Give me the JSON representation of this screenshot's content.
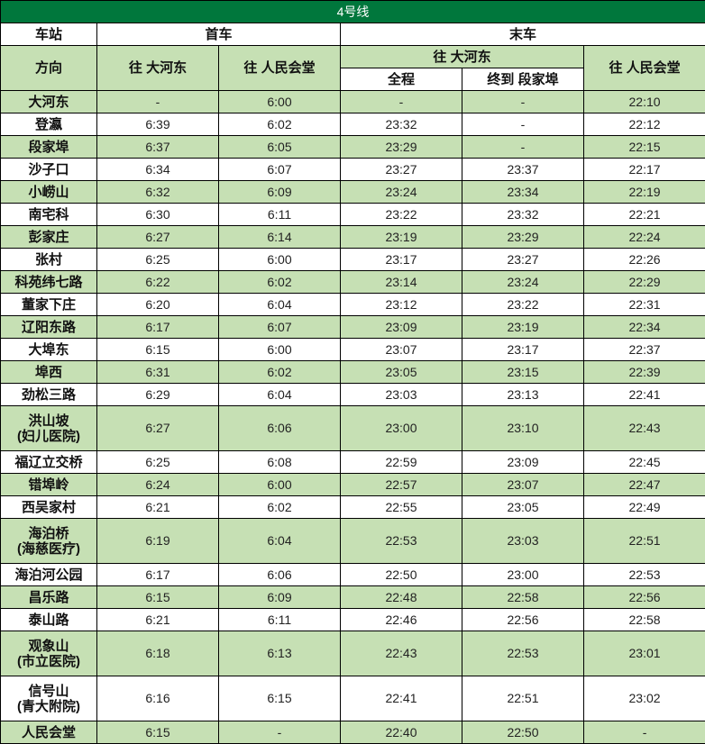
{
  "title": "4号线",
  "header": {
    "station": "车站",
    "first_train": "首车",
    "last_train": "末车",
    "direction": "方向",
    "to_dahedong": "往 大河东",
    "to_renminhuitang": "往 人民会堂",
    "full_route": "全程",
    "terminate_duanjiabu": "终到 段家埠"
  },
  "colors": {
    "title_bg": "#00773c",
    "row_green": "#c6e0b4",
    "row_white": "#ffffff"
  },
  "rows": [
    {
      "station": [
        "大河东"
      ],
      "first_dhd": "-",
      "first_rmht": "6:00",
      "last_full": "-",
      "last_djb": "-",
      "last_rmht": "22:10"
    },
    {
      "station": [
        "登瀛"
      ],
      "first_dhd": "6:39",
      "first_rmht": "6:02",
      "last_full": "23:32",
      "last_djb": "-",
      "last_rmht": "22:12"
    },
    {
      "station": [
        "段家埠"
      ],
      "first_dhd": "6:37",
      "first_rmht": "6:05",
      "last_full": "23:29",
      "last_djb": "-",
      "last_rmht": "22:15"
    },
    {
      "station": [
        "沙子口"
      ],
      "first_dhd": "6:34",
      "first_rmht": "6:07",
      "last_full": "23:27",
      "last_djb": "23:37",
      "last_rmht": "22:17"
    },
    {
      "station": [
        "小崂山"
      ],
      "first_dhd": "6:32",
      "first_rmht": "6:09",
      "last_full": "23:24",
      "last_djb": "23:34",
      "last_rmht": "22:19"
    },
    {
      "station": [
        "南宅科"
      ],
      "first_dhd": "6:30",
      "first_rmht": "6:11",
      "last_full": "23:22",
      "last_djb": "23:32",
      "last_rmht": "22:21"
    },
    {
      "station": [
        "彭家庄"
      ],
      "first_dhd": "6:27",
      "first_rmht": "6:14",
      "last_full": "23:19",
      "last_djb": "23:29",
      "last_rmht": "22:24"
    },
    {
      "station": [
        "张村"
      ],
      "first_dhd": "6:25",
      "first_rmht": "6:00",
      "last_full": "23:17",
      "last_djb": "23:27",
      "last_rmht": "22:26"
    },
    {
      "station": [
        "科苑纬七路"
      ],
      "first_dhd": "6:22",
      "first_rmht": "6:02",
      "last_full": "23:14",
      "last_djb": "23:24",
      "last_rmht": "22:29"
    },
    {
      "station": [
        "董家下庄"
      ],
      "first_dhd": "6:20",
      "first_rmht": "6:04",
      "last_full": "23:12",
      "last_djb": "23:22",
      "last_rmht": "22:31"
    },
    {
      "station": [
        "辽阳东路"
      ],
      "first_dhd": "6:17",
      "first_rmht": "6:07",
      "last_full": "23:09",
      "last_djb": "23:19",
      "last_rmht": "22:34"
    },
    {
      "station": [
        "大埠东"
      ],
      "first_dhd": "6:15",
      "first_rmht": "6:00",
      "last_full": "23:07",
      "last_djb": "23:17",
      "last_rmht": "22:37"
    },
    {
      "station": [
        "埠西"
      ],
      "first_dhd": "6:31",
      "first_rmht": "6:02",
      "last_full": "23:05",
      "last_djb": "23:15",
      "last_rmht": "22:39"
    },
    {
      "station": [
        "劲松三路"
      ],
      "first_dhd": "6:29",
      "first_rmht": "6:04",
      "last_full": "23:03",
      "last_djb": "23:13",
      "last_rmht": "22:41"
    },
    {
      "station": [
        "洪山坡",
        "(妇儿医院)"
      ],
      "first_dhd": "6:27",
      "first_rmht": "6:06",
      "last_full": "23:00",
      "last_djb": "23:10",
      "last_rmht": "22:43"
    },
    {
      "station": [
        "福辽立交桥"
      ],
      "first_dhd": "6:25",
      "first_rmht": "6:08",
      "last_full": "22:59",
      "last_djb": "23:09",
      "last_rmht": "22:45"
    },
    {
      "station": [
        "错埠岭"
      ],
      "first_dhd": "6:24",
      "first_rmht": "6:00",
      "last_full": "22:57",
      "last_djb": "23:07",
      "last_rmht": "22:47"
    },
    {
      "station": [
        "西吴家村"
      ],
      "first_dhd": "6:21",
      "first_rmht": "6:02",
      "last_full": "22:55",
      "last_djb": "23:05",
      "last_rmht": "22:49"
    },
    {
      "station": [
        "海泊桥",
        "(海慈医疗)"
      ],
      "first_dhd": "6:19",
      "first_rmht": "6:04",
      "last_full": "22:53",
      "last_djb": "23:03",
      "last_rmht": "22:51"
    },
    {
      "station": [
        "海泊河公园"
      ],
      "first_dhd": "6:17",
      "first_rmht": "6:06",
      "last_full": "22:50",
      "last_djb": "23:00",
      "last_rmht": "22:53"
    },
    {
      "station": [
        "昌乐路"
      ],
      "first_dhd": "6:15",
      "first_rmht": "6:09",
      "last_full": "22:48",
      "last_djb": "22:58",
      "last_rmht": "22:56"
    },
    {
      "station": [
        "泰山路"
      ],
      "first_dhd": "6:21",
      "first_rmht": "6:11",
      "last_full": "22:46",
      "last_djb": "22:56",
      "last_rmht": "22:58"
    },
    {
      "station": [
        "观象山",
        "(市立医院)"
      ],
      "first_dhd": "6:18",
      "first_rmht": "6:13",
      "last_full": "22:43",
      "last_djb": "22:53",
      "last_rmht": "23:01"
    },
    {
      "station": [
        "信号山",
        "(青大附院)"
      ],
      "first_dhd": "6:16",
      "first_rmht": "6:15",
      "last_full": "22:41",
      "last_djb": "22:51",
      "last_rmht": "23:02"
    },
    {
      "station": [
        "人民会堂"
      ],
      "first_dhd": "6:15",
      "first_rmht": "-",
      "last_full": "22:40",
      "last_djb": "22:50",
      "last_rmht": "-"
    }
  ]
}
